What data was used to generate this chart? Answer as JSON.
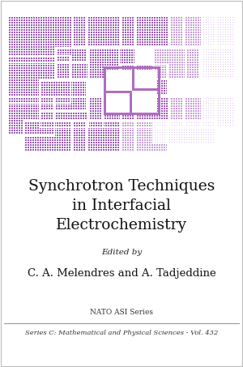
{
  "background_color": "#ffffff",
  "title_line1": "Synchrotron Techniques",
  "title_line2": "in Interfacial",
  "title_line3": "Electrochemistry",
  "edited_by": "Edited by",
  "authors": "C. A. Melendres and A. Tadjeddine",
  "series_label": "NATO ASI Series",
  "series_detail": "Series C: Mathematical and Physical Sciences - Vol. 432",
  "title_fontsize": 13.5,
  "author_fontsize": 10,
  "series_fontsize": 6.5,
  "detail_fontsize": 6.5,
  "dp": "#9b5bb5",
  "lp": "#c89ed8",
  "vlp": "#ddc8eb",
  "outline_color": "#b06ec0",
  "border_color": "#cccccc"
}
